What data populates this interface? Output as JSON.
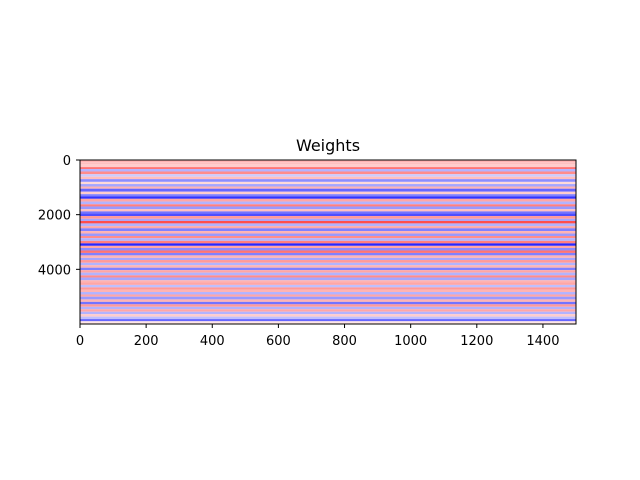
{
  "chart_data": {
    "type": "heatmap",
    "title": "Weights",
    "xlabel": "",
    "ylabel": "",
    "xlim": [
      0,
      1500
    ],
    "ylim": [
      0,
      6000
    ],
    "y_inverted": true,
    "colormap": "bwr",
    "x_ticks": [
      0,
      200,
      400,
      600,
      800,
      1000,
      1200,
      1400
    ],
    "x_tick_labels": [
      "0",
      "200",
      "400",
      "600",
      "800",
      "1000",
      "1200",
      "1400"
    ],
    "y_ticks": [
      0,
      2000,
      4000
    ],
    "y_tick_labels": [
      "0",
      "2000",
      "4000"
    ],
    "rows": [
      {
        "y": 0,
        "v": 0.3
      },
      {
        "y": 80,
        "v": 0.25
      },
      {
        "y": 160,
        "v": 0.2
      },
      {
        "y": 260,
        "v": 0.55
      },
      {
        "y": 330,
        "v": -0.3
      },
      {
        "y": 420,
        "v": 0.45
      },
      {
        "y": 520,
        "v": -0.2
      },
      {
        "y": 610,
        "v": 0.25
      },
      {
        "y": 700,
        "v": -0.45
      },
      {
        "y": 800,
        "v": 0.15
      },
      {
        "y": 880,
        "v": -0.35
      },
      {
        "y": 970,
        "v": 0.3
      },
      {
        "y": 1050,
        "v": -0.6
      },
      {
        "y": 1160,
        "v": 0.2
      },
      {
        "y": 1250,
        "v": -0.5
      },
      {
        "y": 1330,
        "v": -0.8
      },
      {
        "y": 1420,
        "v": 0.35
      },
      {
        "y": 1520,
        "v": -0.3
      },
      {
        "y": 1620,
        "v": 0.5
      },
      {
        "y": 1700,
        "v": -0.4
      },
      {
        "y": 1800,
        "v": 0.25
      },
      {
        "y": 1880,
        "v": -0.55
      },
      {
        "y": 1960,
        "v": -0.7
      },
      {
        "y": 2050,
        "v": 0.4
      },
      {
        "y": 2150,
        "v": -0.35
      },
      {
        "y": 2230,
        "v": 0.7
      },
      {
        "y": 2320,
        "v": -0.3
      },
      {
        "y": 2420,
        "v": 0.35
      },
      {
        "y": 2500,
        "v": -0.5
      },
      {
        "y": 2600,
        "v": 0.3
      },
      {
        "y": 2690,
        "v": -0.4
      },
      {
        "y": 2780,
        "v": 0.45
      },
      {
        "y": 2860,
        "v": -0.3
      },
      {
        "y": 2960,
        "v": 0.5
      },
      {
        "y": 3050,
        "v": -0.85
      },
      {
        "y": 3140,
        "v": 0.35
      },
      {
        "y": 3220,
        "v": -0.45
      },
      {
        "y": 3310,
        "v": 0.55
      },
      {
        "y": 3400,
        "v": -0.5
      },
      {
        "y": 3490,
        "v": 0.3
      },
      {
        "y": 3580,
        "v": -0.35
      },
      {
        "y": 3660,
        "v": 0.4
      },
      {
        "y": 3760,
        "v": -0.3
      },
      {
        "y": 3850,
        "v": 0.3
      },
      {
        "y": 3940,
        "v": -0.5
      },
      {
        "y": 4030,
        "v": 0.35
      },
      {
        "y": 4120,
        "v": -0.3
      },
      {
        "y": 4220,
        "v": 0.45
      },
      {
        "y": 4300,
        "v": -0.35
      },
      {
        "y": 4400,
        "v": 0.3
      },
      {
        "y": 4480,
        "v": 0.35
      },
      {
        "y": 4570,
        "v": -0.25
      },
      {
        "y": 4660,
        "v": 0.4
      },
      {
        "y": 4740,
        "v": 0.3
      },
      {
        "y": 4830,
        "v": -0.3
      },
      {
        "y": 4920,
        "v": 0.35
      },
      {
        "y": 5000,
        "v": -0.4
      },
      {
        "y": 5100,
        "v": 0.3
      },
      {
        "y": 5190,
        "v": -0.55
      },
      {
        "y": 5280,
        "v": 0.4
      },
      {
        "y": 5370,
        "v": -0.3
      },
      {
        "y": 5460,
        "v": 0.35
      },
      {
        "y": 5550,
        "v": -0.3
      },
      {
        "y": 5640,
        "v": 0.2
      },
      {
        "y": 5730,
        "v": -0.25
      },
      {
        "y": 5820,
        "v": -0.6
      },
      {
        "y": 5900,
        "v": 0.1
      }
    ]
  }
}
